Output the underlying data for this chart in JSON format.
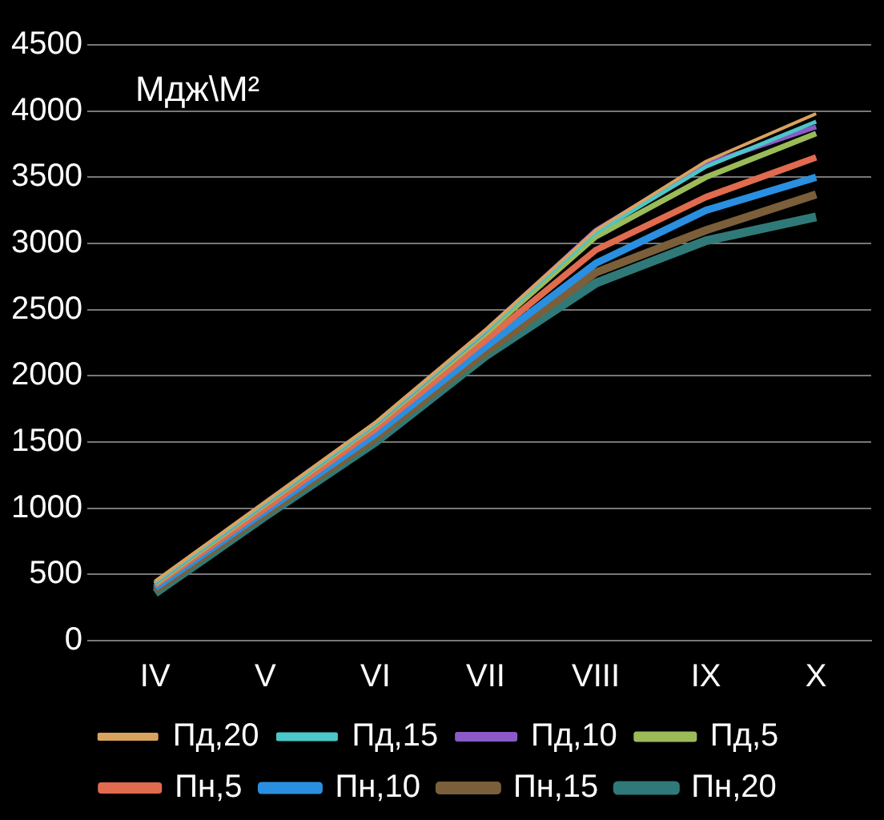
{
  "chart_data": {
    "type": "line",
    "annotations": [
      "Мдж\\М²"
    ],
    "categories": [
      "IV",
      "V",
      "VI",
      "VII",
      "VIII",
      "IX",
      "X"
    ],
    "series": [
      {
        "name": "Пд,20",
        "color": "#d9a25f",
        "values": [
          450,
          1050,
          1650,
          2350,
          3100,
          3620,
          3980
        ]
      },
      {
        "name": "Пд,15",
        "color": "#4bc6c9",
        "values": [
          440,
          1040,
          1640,
          2340,
          3080,
          3580,
          3920
        ]
      },
      {
        "name": "Пд,10",
        "color": "#8a5bc7",
        "values": [
          440,
          1040,
          1640,
          2340,
          3100,
          3600,
          3880
        ]
      },
      {
        "name": "Пд,5",
        "color": "#9bbb59",
        "values": [
          430,
          1030,
          1630,
          2320,
          3050,
          3500,
          3830
        ]
      },
      {
        "name": "Пн,5",
        "color": "#e06b4e",
        "values": [
          420,
          1000,
          1600,
          2270,
          2950,
          3350,
          3650
        ]
      },
      {
        "name": "Пн,10",
        "color": "#2a8fe0",
        "values": [
          400,
          980,
          1560,
          2220,
          2850,
          3250,
          3500
        ]
      },
      {
        "name": "Пн,15",
        "color": "#7a5f3a",
        "values": [
          380,
          960,
          1530,
          2180,
          2780,
          3100,
          3370
        ]
      },
      {
        "name": "Пн,20",
        "color": "#2f7a78",
        "values": [
          360,
          940,
          1500,
          2150,
          2700,
          3020,
          3200
        ]
      }
    ],
    "ylim": [
      0,
      4500
    ],
    "yticks": [
      0,
      500,
      1000,
      1500,
      2000,
      2500,
      3000,
      3500,
      4000,
      4500
    ],
    "grid": "y",
    "legend": "bottom",
    "marker": "none",
    "line_style": "solid"
  }
}
